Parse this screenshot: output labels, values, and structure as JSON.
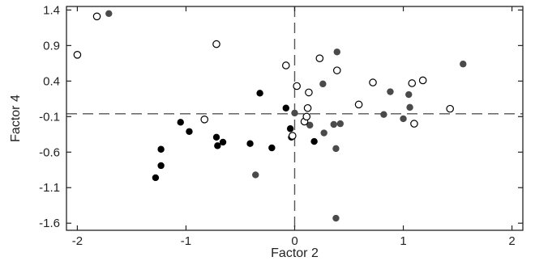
{
  "chart_data": {
    "type": "scatter",
    "xlabel": "Factor 2",
    "ylabel": "Factor 4",
    "xlim": [
      -2.1,
      2.1
    ],
    "ylim": [
      -1.7,
      1.45
    ],
    "x_ticks": [
      -2,
      -1,
      0,
      1,
      2
    ],
    "x_tick_labels": [
      "-2",
      "-1",
      "0",
      "1",
      "2"
    ],
    "y_ticks": [
      1.4,
      0.9,
      0.4,
      -0.1,
      -0.6,
      -1.1,
      -1.6
    ],
    "y_tick_labels": [
      "1.4",
      "0.9",
      "0.4",
      "-0.1",
      "-0.6",
      "-1.1",
      "-1.6"
    ],
    "reference_lines": {
      "x": 0,
      "y": -0.06,
      "style": "dashed"
    },
    "grid": false,
    "legend": "none",
    "series": [
      {
        "marker": "filled-black",
        "color": "#000000",
        "points": [
          [
            -1.28,
            -0.96
          ],
          [
            -1.23,
            -0.79
          ],
          [
            -1.23,
            -0.56
          ],
          [
            -1.05,
            -0.18
          ],
          [
            -0.97,
            -0.31
          ],
          [
            -0.72,
            -0.39
          ],
          [
            -0.71,
            -0.51
          ],
          [
            -0.66,
            -0.46
          ],
          [
            -0.41,
            -0.48
          ],
          [
            -0.32,
            0.23
          ],
          [
            -0.21,
            -0.54
          ],
          [
            -0.08,
            0.02
          ],
          [
            -0.04,
            -0.27
          ],
          [
            -0.03,
            -0.39
          ],
          [
            0.18,
            -0.45
          ]
        ]
      },
      {
        "marker": "filled-gray",
        "color": "#4a4a4a",
        "points": [
          [
            -1.71,
            1.35
          ],
          [
            -0.36,
            -0.92
          ],
          [
            0.0,
            -0.05
          ],
          [
            0.14,
            -0.22
          ],
          [
            0.26,
            0.36
          ],
          [
            0.27,
            -0.33
          ],
          [
            0.36,
            -0.21
          ],
          [
            0.38,
            -0.55
          ],
          [
            0.38,
            -1.53
          ],
          [
            0.39,
            0.81
          ],
          [
            0.42,
            -0.2
          ],
          [
            0.82,
            -0.07
          ],
          [
            0.88,
            0.25
          ],
          [
            1.0,
            -0.13
          ],
          [
            1.05,
            0.21
          ],
          [
            1.06,
            0.03
          ],
          [
            1.55,
            0.64
          ]
        ]
      },
      {
        "marker": "open",
        "color": "#000000",
        "points": [
          [
            -2.0,
            0.77
          ],
          [
            -1.82,
            1.31
          ],
          [
            -0.83,
            -0.14
          ],
          [
            -0.72,
            0.92
          ],
          [
            -0.08,
            0.62
          ],
          [
            -0.02,
            -0.37
          ],
          [
            0.02,
            0.33
          ],
          [
            0.09,
            -0.17
          ],
          [
            0.11,
            -0.1
          ],
          [
            0.12,
            0.02
          ],
          [
            0.13,
            0.24
          ],
          [
            0.23,
            0.72
          ],
          [
            0.39,
            0.55
          ],
          [
            0.59,
            0.07
          ],
          [
            0.72,
            0.38
          ],
          [
            1.08,
            0.37
          ],
          [
            1.1,
            -0.2
          ],
          [
            1.18,
            0.41
          ],
          [
            1.43,
            0.01
          ]
        ]
      }
    ]
  }
}
